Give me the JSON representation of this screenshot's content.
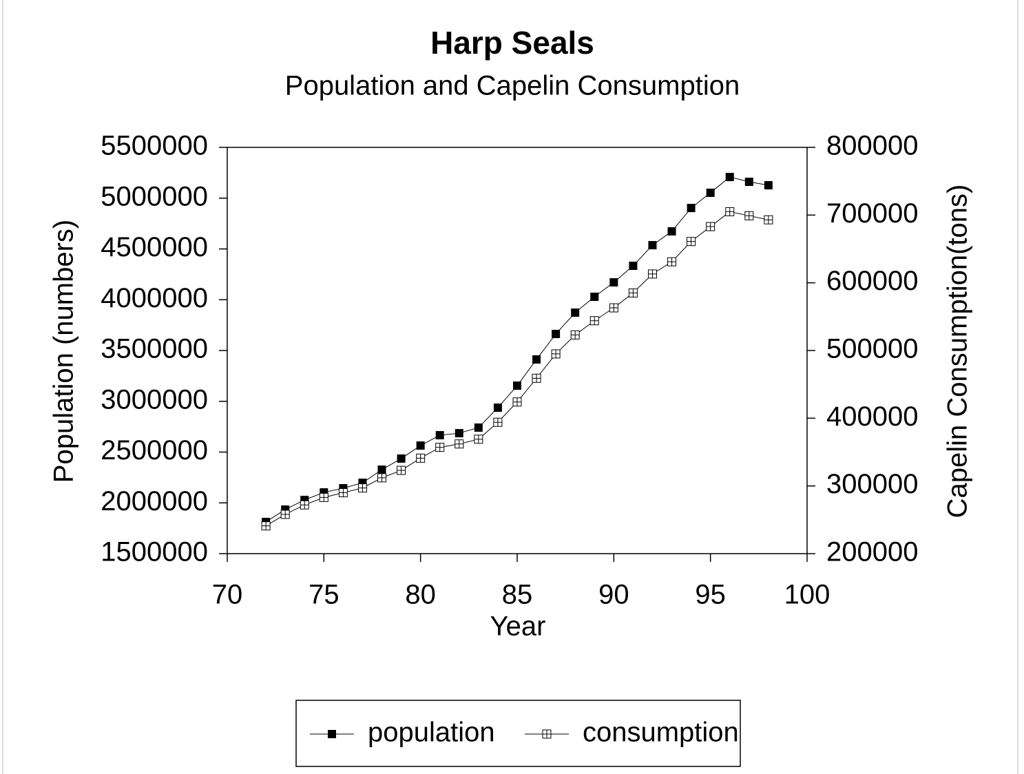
{
  "chart_data": {
    "type": "line",
    "title": "Harp Seals",
    "subtitle": "Population and Capelin Consumption",
    "x_label": "Year",
    "y_label": "Population (numbers)",
    "y2_label": "Capelin Consumption(tons)",
    "x": [
      72,
      73,
      74,
      75,
      76,
      77,
      78,
      79,
      80,
      81,
      82,
      83,
      84,
      85,
      86,
      87,
      88,
      89,
      90,
      91,
      92,
      93,
      94,
      95,
      96,
      97,
      98
    ],
    "series": [
      {
        "name": "population",
        "color": "#000000",
        "marker": "filled-square",
        "values": [
          1812000,
          1934000,
          2029000,
          2103000,
          2144000,
          2198000,
          2327000,
          2436000,
          2564000,
          2666000,
          2686000,
          2741000,
          2937000,
          3154000,
          3412000,
          3663000,
          3873000,
          4029000,
          4171000,
          4334000,
          4537000,
          4673000,
          4903000,
          5053000,
          5208000,
          5161000,
          5127000
        ]
      },
      {
        "name": "consumption",
        "color": "#000000",
        "marker": "crossed-square",
        "axis": "y2",
        "values": [
          241000,
          258000,
          272000,
          283000,
          290000,
          297000,
          312000,
          323000,
          341000,
          357000,
          362000,
          369000,
          394000,
          424000,
          459000,
          495000,
          523000,
          544000,
          563000,
          585000,
          613000,
          631000,
          661000,
          683000,
          705000,
          699000,
          693000
        ]
      }
    ],
    "xlim": [
      70,
      100
    ],
    "xticks": [
      70,
      75,
      80,
      85,
      90,
      95,
      100
    ],
    "ylim": [
      1500000,
      5500000
    ],
    "yticks": [
      1500000,
      2000000,
      2500000,
      3000000,
      3500000,
      4000000,
      4500000,
      5000000,
      5500000
    ],
    "y2lim": [
      200000,
      800000
    ],
    "y2ticks": [
      200000,
      300000,
      400000,
      500000,
      600000,
      700000,
      800000
    ],
    "legend": "bottom"
  }
}
